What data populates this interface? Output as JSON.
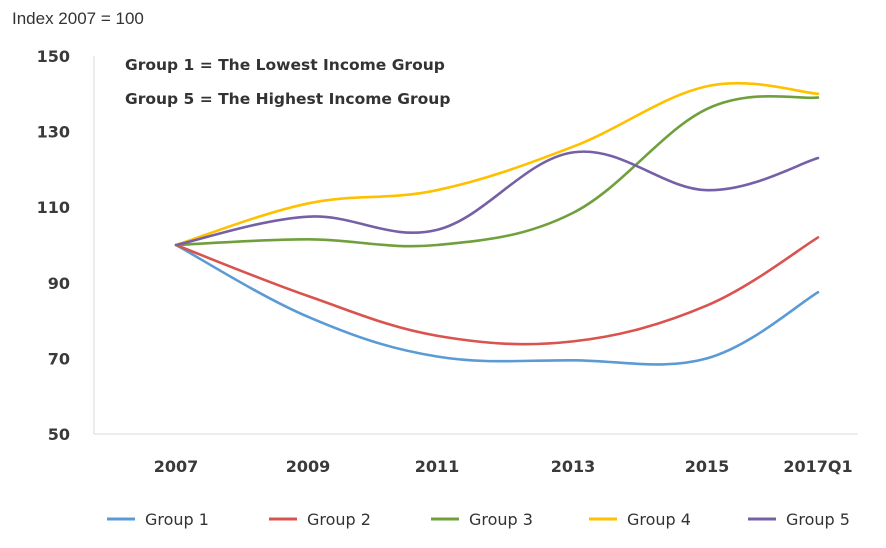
{
  "chart_data": {
    "type": "line",
    "ylabel": "Index 2007 = 100",
    "annotations": [
      "Group 1 = The Lowest Income Group",
      "Group 5 = The Highest Income Group"
    ],
    "x": [
      "2007",
      "2009",
      "2011",
      "2013",
      "2015",
      "2017Q1"
    ],
    "ylim": [
      50,
      150
    ],
    "yticks": [
      "50",
      "70",
      "90",
      "110",
      "130",
      "150"
    ],
    "grid": false,
    "legend_position": "bottom",
    "series": [
      {
        "name": "Group 1",
        "color": "#5b9bd5",
        "values": [
          100,
          81,
          70.5,
          69.5,
          70,
          87.5
        ]
      },
      {
        "name": "Group 2",
        "color": "#d9534f",
        "values": [
          100,
          86.5,
          76,
          74.5,
          84,
          102
        ]
      },
      {
        "name": "Group 3",
        "color": "#70a03c",
        "values": [
          100,
          101.5,
          100,
          108.5,
          136,
          139
        ]
      },
      {
        "name": "Group 4",
        "color": "#ffc000",
        "values": [
          100,
          111,
          114.5,
          126,
          142,
          140
        ]
      },
      {
        "name": "Group 5",
        "color": "#7560a8",
        "values": [
          100,
          107.5,
          104,
          124.5,
          114.5,
          123
        ]
      }
    ]
  }
}
